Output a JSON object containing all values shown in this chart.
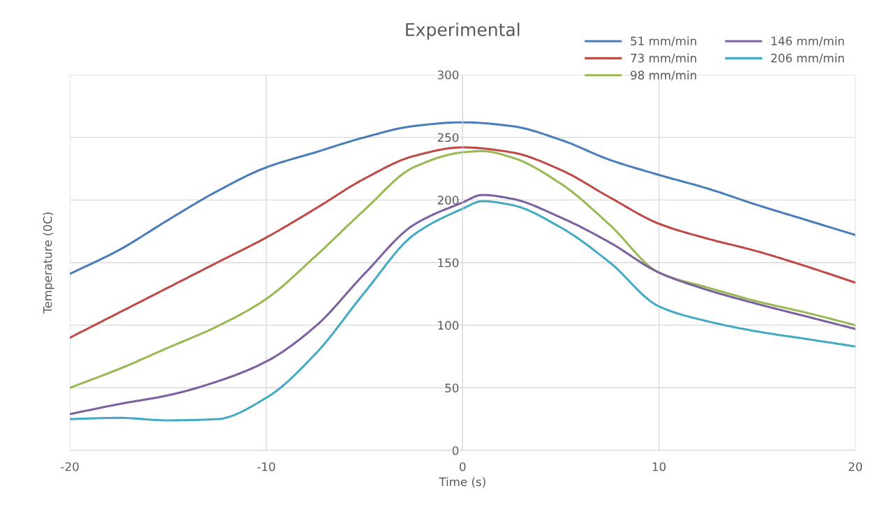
{
  "chart_data": {
    "type": "line",
    "title": "Experimental",
    "xlabel": "Time (s)",
    "ylabel": "Temperature (0C)",
    "xlim": [
      -20,
      20
    ],
    "xticks": [
      -20,
      -10,
      0,
      10,
      20
    ],
    "ylim": [
      0,
      300
    ],
    "yticks": [
      0,
      50,
      100,
      150,
      200,
      250,
      300
    ],
    "grid": true,
    "legend": "top right",
    "marker": "none",
    "line_style": "solid",
    "series": [
      {
        "name": "51 mm/min",
        "color": "#4a7ebb",
        "x": [
          -20,
          -17.5,
          -15,
          -12.5,
          -10,
          -7.5,
          -5,
          -2.5,
          0,
          2.5,
          5,
          7.5,
          10,
          12.5,
          15,
          17.5,
          20
        ],
        "values": [
          141,
          160,
          184,
          207,
          226,
          238,
          250,
          259,
          262,
          259,
          248,
          232,
          220,
          209,
          196,
          184,
          172
        ]
      },
      {
        "name": "73 mm/min",
        "color": "#be4b48",
        "x": [
          -20,
          -17.5,
          -15,
          -12.5,
          -10,
          -7.5,
          -5,
          -2.5,
          0,
          2.5,
          5,
          7.5,
          10,
          12.5,
          15,
          17.5,
          20
        ],
        "values": [
          90,
          110,
          130,
          150,
          170,
          193,
          217,
          235,
          242,
          238,
          224,
          202,
          181,
          169,
          159,
          147,
          134
        ]
      },
      {
        "name": "98 mm/min",
        "color": "#98b954",
        "x": [
          -20,
          -17.5,
          -15,
          -12.5,
          -10,
          -7.5,
          -5,
          -2.5,
          0,
          1,
          2.5,
          5,
          7.5,
          10,
          12.5,
          15,
          17.5,
          20
        ],
        "values": [
          50,
          65,
          82,
          99,
          121,
          155,
          192,
          226,
          238,
          239,
          234,
          213,
          180,
          142,
          130,
          119,
          110,
          100
        ]
      },
      {
        "name": "146 mm/min",
        "color": "#7d60a0",
        "x": [
          -20,
          -17.5,
          -15,
          -12.5,
          -10,
          -7.5,
          -5,
          -2.5,
          0,
          1,
          2.5,
          5,
          7.5,
          10,
          12.5,
          15,
          17.5,
          20
        ],
        "values": [
          29,
          37,
          44,
          55,
          71,
          99,
          141,
          180,
          198,
          204,
          201,
          186,
          166,
          142,
          128,
          117,
          107,
          97
        ]
      },
      {
        "name": "206 mm/min",
        "color": "#46aac5",
        "x": [
          -20,
          -17.5,
          -15,
          -12.5,
          -10,
          -7.5,
          -5,
          -2.5,
          0,
          1,
          2.5,
          5,
          7.5,
          10,
          12.5,
          15,
          17.5,
          20
        ],
        "values": [
          25,
          26,
          24,
          25,
          42,
          77,
          126,
          172,
          193,
          199,
          196,
          178,
          150,
          115,
          103,
          95,
          89,
          83
        ]
      }
    ]
  }
}
